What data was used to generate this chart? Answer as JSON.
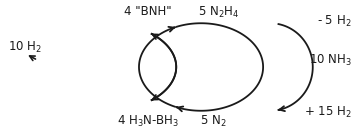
{
  "bg_color": "#ffffff",
  "arrow_color": "#1a1a1a",
  "text_color": "#1a1a1a",
  "fontsize": 8.5,
  "labels": {
    "top_mid_left": "4 \"BNH\"",
    "bottom_mid_left": "4 H$_3$N-BH$_3$",
    "far_left": "10 H$_2$",
    "top_mid_right": "5 N$_2$H$_4$",
    "bottom_mid_right": "5 N$_2$",
    "side_top": "- 5 H$_2$",
    "side_mid": "10 NH$_3$",
    "side_bot": "+ 15 H$_2$"
  }
}
